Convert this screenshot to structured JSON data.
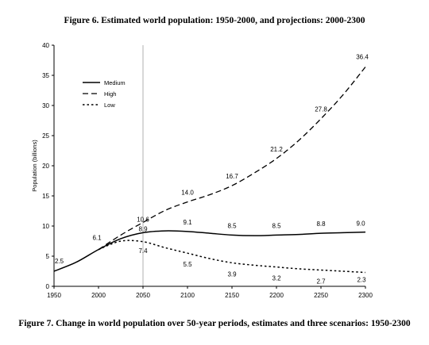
{
  "figure_title": "Figure 6. Estimated world population: 1950-2000, and projections: 2000-2300",
  "figure_caption": "Figure 7. Change in world population over 50-year periods, estimates and three scenarios: 1950-2300",
  "chart_data": {
    "type": "line",
    "ylabel": "Population (billions)",
    "xlabel": "",
    "xlim": [
      1950,
      2300
    ],
    "ylim": [
      0,
      40
    ],
    "x_ticks": [
      1950,
      2000,
      2050,
      2100,
      2150,
      2200,
      2250,
      2300
    ],
    "y_ticks": [
      0,
      5,
      10,
      15,
      20,
      25,
      30,
      35,
      40
    ],
    "reference_line_x": 2050,
    "legend_position": "top-left",
    "grid": false,
    "series": [
      {
        "name": "Medium",
        "style": "solid",
        "x": [
          1950,
          1975,
          2000,
          2025,
          2050,
          2075,
          2100,
          2125,
          2150,
          2175,
          2200,
          2225,
          2250,
          2275,
          2300
        ],
        "values": [
          2.5,
          4.0,
          6.1,
          7.9,
          8.9,
          9.2,
          9.1,
          8.8,
          8.5,
          8.4,
          8.5,
          8.6,
          8.8,
          8.9,
          9.0
        ]
      },
      {
        "name": "High",
        "style": "dashed",
        "x": [
          2000,
          2025,
          2050,
          2075,
          2100,
          2125,
          2150,
          2175,
          2200,
          2225,
          2250,
          2275,
          2300
        ],
        "values": [
          6.1,
          8.5,
          10.6,
          12.6,
          14.0,
          15.2,
          16.7,
          18.8,
          21.2,
          24.2,
          27.8,
          31.8,
          36.4
        ]
      },
      {
        "name": "Low",
        "style": "dotted",
        "x": [
          2000,
          2025,
          2050,
          2075,
          2100,
          2125,
          2150,
          2175,
          2200,
          2225,
          2250,
          2275,
          2300
        ],
        "values": [
          6.1,
          7.5,
          7.4,
          6.4,
          5.5,
          4.6,
          3.9,
          3.5,
          3.2,
          2.9,
          2.7,
          2.5,
          2.3
        ]
      }
    ],
    "data_labels": [
      {
        "x": 1950,
        "y": 2.5,
        "text": "2.5",
        "series": "Medium"
      },
      {
        "x": 2000,
        "y": 6.1,
        "text": "6.1",
        "series": "Medium"
      },
      {
        "x": 2050,
        "y": 10.6,
        "text": "10.6",
        "series": "High"
      },
      {
        "x": 2050,
        "y": 8.9,
        "text": "8.9",
        "series": "Medium"
      },
      {
        "x": 2050,
        "y": 7.4,
        "text": "7.4",
        "series": "Low"
      },
      {
        "x": 2100,
        "y": 14.0,
        "text": "14.0",
        "series": "High"
      },
      {
        "x": 2100,
        "y": 9.1,
        "text": "9.1",
        "series": "Medium"
      },
      {
        "x": 2100,
        "y": 5.5,
        "text": "5.5",
        "series": "Low"
      },
      {
        "x": 2150,
        "y": 16.7,
        "text": "16.7",
        "series": "High"
      },
      {
        "x": 2150,
        "y": 8.5,
        "text": "8.5",
        "series": "Medium"
      },
      {
        "x": 2150,
        "y": 3.9,
        "text": "3.9",
        "series": "Low"
      },
      {
        "x": 2200,
        "y": 21.2,
        "text": "21.2",
        "series": "High"
      },
      {
        "x": 2200,
        "y": 8.5,
        "text": "8.5",
        "series": "Medium"
      },
      {
        "x": 2200,
        "y": 3.2,
        "text": "3.2",
        "series": "Low"
      },
      {
        "x": 2250,
        "y": 27.8,
        "text": "27.8",
        "series": "High"
      },
      {
        "x": 2250,
        "y": 8.8,
        "text": "8.8",
        "series": "Medium"
      },
      {
        "x": 2250,
        "y": 2.7,
        "text": "2.7",
        "series": "Low"
      },
      {
        "x": 2300,
        "y": 36.4,
        "text": "36.4",
        "series": "High"
      },
      {
        "x": 2300,
        "y": 9.0,
        "text": "9.0",
        "series": "Medium"
      },
      {
        "x": 2300,
        "y": 2.3,
        "text": "2.3",
        "series": "Low"
      }
    ],
    "colors": {
      "lines": "#000000",
      "axes": "#000000",
      "reference_line": "#b0b0b0"
    }
  }
}
